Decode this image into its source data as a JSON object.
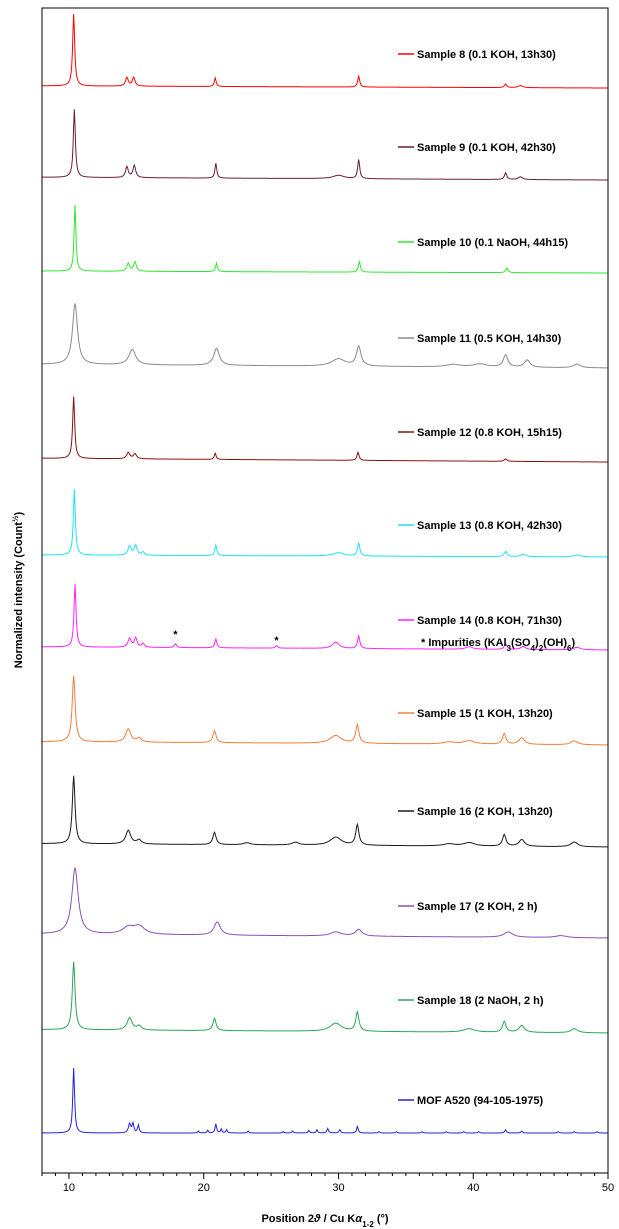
{
  "chart_data": {
    "type": "line",
    "xlabel_parts": [
      "Position 2",
      "ϑ",
      " / Cu K",
      "α",
      "1-2",
      " (°)"
    ],
    "ylabel_parts": [
      "Normalized intensity (Count",
      "½",
      ")"
    ],
    "xlim": [
      8,
      50
    ],
    "xticks": [
      10,
      20,
      30,
      40,
      50
    ],
    "xtick_labels": [
      "10",
      "20",
      "30",
      "40",
      "50"
    ],
    "grid": false,
    "y_tick_labels": false,
    "series": [
      {
        "name": "Sample 8 (0.1 KOH, 13h30)",
        "color": "#ff0000",
        "baseline_start": 0.03,
        "baseline_end": 0.0,
        "peaks": [
          [
            10.35,
            1.0,
            0.09
          ],
          [
            14.3,
            0.12,
            0.12
          ],
          [
            14.8,
            0.12,
            0.12
          ],
          [
            20.85,
            0.12,
            0.08
          ],
          [
            31.5,
            0.15,
            0.09
          ],
          [
            42.4,
            0.05,
            0.1
          ],
          [
            43.5,
            0.03,
            0.2
          ]
        ]
      },
      {
        "name": "Sample 9 (0.1 KOH, 42h30)",
        "color": "#6b1c3a",
        "baseline_start": 0.04,
        "baseline_end": 0.0,
        "peaks": [
          [
            10.4,
            1.0,
            0.09
          ],
          [
            14.3,
            0.16,
            0.12
          ],
          [
            14.85,
            0.18,
            0.12
          ],
          [
            20.9,
            0.22,
            0.08
          ],
          [
            30.0,
            0.05,
            0.5
          ],
          [
            31.5,
            0.28,
            0.09
          ],
          [
            42.4,
            0.1,
            0.1
          ],
          [
            43.5,
            0.04,
            0.2
          ]
        ]
      },
      {
        "name": "Sample 10 (0.1 NaOH, 44h15)",
        "color": "#2ee82e",
        "baseline_start": 0.03,
        "baseline_end": 0.0,
        "peaks": [
          [
            10.45,
            1.0,
            0.08
          ],
          [
            14.4,
            0.12,
            0.12
          ],
          [
            14.9,
            0.14,
            0.12
          ],
          [
            20.95,
            0.13,
            0.08
          ],
          [
            31.55,
            0.16,
            0.09
          ],
          [
            42.5,
            0.07,
            0.1
          ]
        ]
      },
      {
        "name": "Sample 11 (0.5 KOH, 14h30)",
        "color": "#8a8a8a",
        "baseline_start": 0.06,
        "baseline_end": 0.0,
        "peaks": [
          [
            10.45,
            1.0,
            0.22
          ],
          [
            14.7,
            0.25,
            0.3
          ],
          [
            20.95,
            0.28,
            0.25
          ],
          [
            30.0,
            0.12,
            0.6
          ],
          [
            31.5,
            0.32,
            0.2
          ],
          [
            38.5,
            0.04,
            0.6
          ],
          [
            40.5,
            0.05,
            0.6
          ],
          [
            42.4,
            0.2,
            0.2
          ],
          [
            44.0,
            0.12,
            0.25
          ],
          [
            47.7,
            0.06,
            0.3
          ]
        ]
      },
      {
        "name": "Sample 12 (0.8 KOH, 15h15)",
        "color": "#8b1010",
        "baseline_start": 0.06,
        "baseline_end": 0.0,
        "peaks": [
          [
            10.35,
            1.0,
            0.09
          ],
          [
            14.4,
            0.1,
            0.14
          ],
          [
            14.9,
            0.08,
            0.14
          ],
          [
            20.85,
            0.1,
            0.08
          ],
          [
            31.45,
            0.13,
            0.09
          ],
          [
            42.4,
            0.04,
            0.12
          ]
        ]
      },
      {
        "name": "Sample 13 (0.8 KOH, 42h30)",
        "color": "#19e5f0",
        "baseline_start": 0.03,
        "baseline_end": 0.0,
        "peaks": [
          [
            10.4,
            1.0,
            0.09
          ],
          [
            14.5,
            0.14,
            0.14
          ],
          [
            14.95,
            0.15,
            0.12
          ],
          [
            15.5,
            0.05,
            0.12
          ],
          [
            20.9,
            0.16,
            0.09
          ],
          [
            30.0,
            0.05,
            0.5
          ],
          [
            31.5,
            0.2,
            0.1
          ],
          [
            42.4,
            0.08,
            0.12
          ],
          [
            43.7,
            0.04,
            0.2
          ],
          [
            47.7,
            0.03,
            0.3
          ]
        ]
      },
      {
        "name": "Sample 14 (0.8 KOH, 71h30)",
        "color": "#ff21ff",
        "baseline_start": 0.05,
        "baseline_end": 0.0,
        "peaks": [
          [
            10.45,
            1.0,
            0.09
          ],
          [
            14.5,
            0.14,
            0.14
          ],
          [
            14.95,
            0.15,
            0.12
          ],
          [
            15.5,
            0.06,
            0.12
          ],
          [
            17.9,
            0.06,
            0.1
          ],
          [
            20.9,
            0.14,
            0.09
          ],
          [
            25.4,
            0.04,
            0.1
          ],
          [
            29.8,
            0.1,
            0.3
          ],
          [
            31.5,
            0.2,
            0.1
          ],
          [
            39.7,
            0.04,
            0.3
          ],
          [
            42.4,
            0.09,
            0.12
          ],
          [
            43.7,
            0.05,
            0.2
          ],
          [
            47.7,
            0.04,
            0.3
          ]
        ]
      },
      {
        "name": "Sample 15 (1 KOH, 13h20)",
        "color": "#f07d3a",
        "baseline_start": 0.05,
        "baseline_end": 0.0,
        "peaks": [
          [
            10.35,
            1.0,
            0.13
          ],
          [
            14.4,
            0.2,
            0.22
          ],
          [
            15.2,
            0.06,
            0.2
          ],
          [
            20.8,
            0.18,
            0.14
          ],
          [
            29.8,
            0.12,
            0.5
          ],
          [
            31.4,
            0.28,
            0.14
          ],
          [
            38.2,
            0.03,
            0.5
          ],
          [
            39.7,
            0.05,
            0.5
          ],
          [
            42.3,
            0.16,
            0.15
          ],
          [
            43.6,
            0.1,
            0.25
          ],
          [
            47.5,
            0.06,
            0.3
          ]
        ]
      },
      {
        "name": "Sample 16 (2 KOH, 13h20)",
        "color": "#1a1a1a",
        "baseline_start": 0.05,
        "baseline_end": 0.0,
        "peaks": [
          [
            10.35,
            1.0,
            0.12
          ],
          [
            14.4,
            0.2,
            0.22
          ],
          [
            15.2,
            0.06,
            0.2
          ],
          [
            20.8,
            0.18,
            0.14
          ],
          [
            23.2,
            0.03,
            0.3
          ],
          [
            26.8,
            0.04,
            0.3
          ],
          [
            29.8,
            0.12,
            0.5
          ],
          [
            31.4,
            0.3,
            0.14
          ],
          [
            38.2,
            0.03,
            0.5
          ],
          [
            39.7,
            0.05,
            0.5
          ],
          [
            42.3,
            0.17,
            0.15
          ],
          [
            43.6,
            0.1,
            0.25
          ],
          [
            47.5,
            0.07,
            0.3
          ]
        ]
      },
      {
        "name": "Sample 17 (2 KOH, 2 h)",
        "color": "#8c4fb8",
        "baseline_start": 0.06,
        "baseline_end": 0.0,
        "peaks": [
          [
            10.45,
            1.0,
            0.28
          ],
          [
            14.4,
            0.1,
            0.5
          ],
          [
            15.2,
            0.12,
            0.5
          ],
          [
            21.0,
            0.2,
            0.28
          ],
          [
            29.8,
            0.06,
            0.5
          ],
          [
            31.5,
            0.1,
            0.3
          ],
          [
            42.6,
            0.08,
            0.4
          ],
          [
            46.5,
            0.03,
            0.5
          ]
        ]
      },
      {
        "name": "Sample 18 (2 NaOH, 2 h)",
        "color": "#2aa55a",
        "baseline_start": 0.05,
        "baseline_end": 0.0,
        "peaks": [
          [
            10.35,
            1.0,
            0.12
          ],
          [
            14.5,
            0.18,
            0.22
          ],
          [
            15.2,
            0.06,
            0.2
          ],
          [
            20.8,
            0.18,
            0.14
          ],
          [
            29.8,
            0.12,
            0.5
          ],
          [
            31.4,
            0.28,
            0.14
          ],
          [
            39.7,
            0.05,
            0.5
          ],
          [
            42.3,
            0.16,
            0.15
          ],
          [
            43.6,
            0.1,
            0.25
          ],
          [
            47.5,
            0.06,
            0.3
          ]
        ]
      },
      {
        "name": "MOF A520 (94-105-1975)",
        "color": "#2222dd",
        "baseline_start": 0.0,
        "baseline_end": 0.0,
        "peaks": [
          [
            10.35,
            1.0,
            0.08
          ],
          [
            14.5,
            0.14,
            0.1
          ],
          [
            14.75,
            0.14,
            0.08
          ],
          [
            15.15,
            0.12,
            0.07
          ],
          [
            19.6,
            0.03,
            0.06
          ],
          [
            20.3,
            0.04,
            0.06
          ],
          [
            20.9,
            0.14,
            0.07
          ],
          [
            21.3,
            0.06,
            0.06
          ],
          [
            21.7,
            0.05,
            0.06
          ],
          [
            23.3,
            0.03,
            0.06
          ],
          [
            25.9,
            0.02,
            0.06
          ],
          [
            26.6,
            0.03,
            0.06
          ],
          [
            27.8,
            0.04,
            0.06
          ],
          [
            28.4,
            0.05,
            0.06
          ],
          [
            29.2,
            0.07,
            0.07
          ],
          [
            30.1,
            0.05,
            0.07
          ],
          [
            31.4,
            0.1,
            0.07
          ],
          [
            33.0,
            0.02,
            0.07
          ],
          [
            34.3,
            0.02,
            0.07
          ],
          [
            36.2,
            0.02,
            0.07
          ],
          [
            38.0,
            0.02,
            0.07
          ],
          [
            39.3,
            0.02,
            0.07
          ],
          [
            40.4,
            0.02,
            0.07
          ],
          [
            42.4,
            0.05,
            0.07
          ],
          [
            43.6,
            0.03,
            0.07
          ],
          [
            46.3,
            0.02,
            0.07
          ],
          [
            47.5,
            0.02,
            0.07
          ],
          [
            49.2,
            0.02,
            0.07
          ]
        ]
      }
    ],
    "impurity_label_parts": [
      {
        "t": "* Impurities (KAl",
        "s": "n"
      },
      {
        "t": "3",
        "s": "sub"
      },
      {
        "t": "(SO",
        "s": "n"
      },
      {
        "t": "4",
        "s": "sub"
      },
      {
        "t": ")",
        "s": "n"
      },
      {
        "t": "2",
        "s": "sub"
      },
      {
        "t": "(OH)",
        "s": "n"
      },
      {
        "t": "6",
        "s": "sub"
      },
      {
        "t": ")",
        "s": "n"
      }
    ],
    "impurity_markers": [
      {
        "x": 17.9,
        "text": "*"
      },
      {
        "x": 25.4,
        "text": "*"
      }
    ]
  }
}
